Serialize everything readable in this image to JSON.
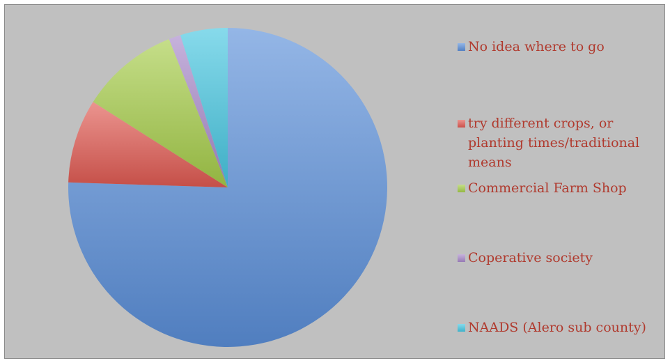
{
  "chart_data": {
    "type": "pie",
    "title": "",
    "slices": [
      {
        "label": "No idea where to go",
        "value": 75.5,
        "color": "#5b8fd9"
      },
      {
        "label": "try different crops, or planting times/traditional means",
        "value": 8.5,
        "color": "#e05a52"
      },
      {
        "label": "Commercial Farm Shop",
        "value": 10.0,
        "color": "#a6cc4a"
      },
      {
        "label": "Coperative society",
        "value": 1.2,
        "color": "#a889c9"
      },
      {
        "label": "NAADS (Alero sub county)",
        "value": 4.8,
        "color": "#46c6e0"
      }
    ],
    "legend_position": "right"
  }
}
